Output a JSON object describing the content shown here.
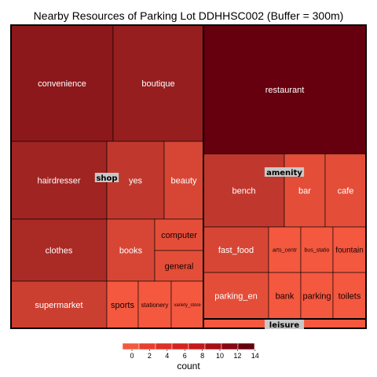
{
  "chart_data": {
    "type": "treemap",
    "title": "Nearby Resources of Parking Lot DDHHSC002 (Buffer = 300m)",
    "groups": [
      {
        "name": "shop",
        "items": [
          {
            "label": "convenience",
            "value": 10
          },
          {
            "label": "boutique",
            "value": 9
          },
          {
            "label": "hairdresser",
            "value": 8
          },
          {
            "label": "yes",
            "value": 5
          },
          {
            "label": "beauty",
            "value": 3
          },
          {
            "label": "clothes",
            "value": 7
          },
          {
            "label": "books",
            "value": 3
          },
          {
            "label": "computer",
            "value": 2
          },
          {
            "label": "general",
            "value": 2
          },
          {
            "label": "supermarket",
            "value": 4
          },
          {
            "label": "sports",
            "value": 1
          },
          {
            "label": "stationery",
            "value": 1
          },
          {
            "label": "variety_store",
            "value": 1
          }
        ]
      },
      {
        "name": "amenity",
        "items": [
          {
            "label": "restaurant",
            "value": 14
          },
          {
            "label": "bench",
            "value": 5
          },
          {
            "label": "bar",
            "value": 2
          },
          {
            "label": "cafe",
            "value": 2
          },
          {
            "label": "fast_food",
            "value": 3
          },
          {
            "label": "arts_centr",
            "value": 1
          },
          {
            "label": "bus_statio",
            "value": 1
          },
          {
            "label": "fountain",
            "value": 1
          },
          {
            "label": "parking_en",
            "value": 2
          },
          {
            "label": "bank",
            "value": 1
          },
          {
            "label": "parking",
            "value": 1
          },
          {
            "label": "toilets",
            "value": 1
          }
        ]
      },
      {
        "name": "leisure",
        "items": [
          {
            "label": "",
            "value": 1
          }
        ]
      }
    ],
    "legend": {
      "title": "count",
      "ticks": [
        0,
        2,
        4,
        6,
        8,
        10,
        12,
        14
      ],
      "colors": [
        "#f15a3f",
        "#e83e2f",
        "#de3026",
        "#d2251f",
        "#c4181b",
        "#a81015",
        "#860812",
        "#66000e"
      ],
      "range": [
        0,
        15
      ]
    },
    "color_scale": {
      "low": "#f4583f",
      "high": "#66000e",
      "max": 14
    }
  }
}
